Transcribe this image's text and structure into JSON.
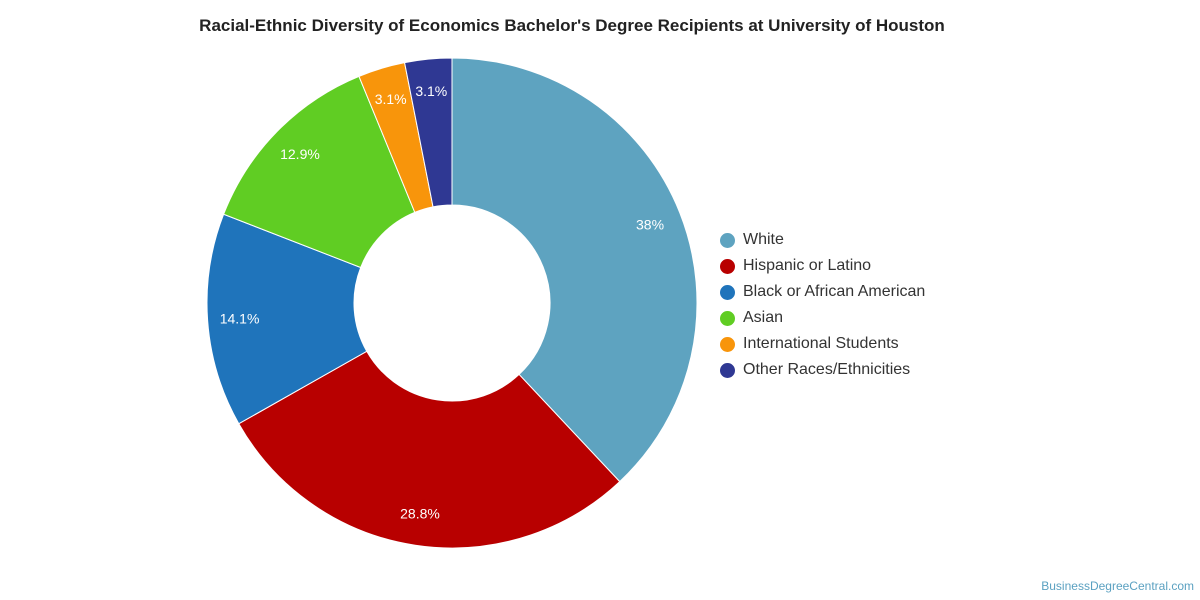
{
  "chart_data": {
    "type": "pie",
    "title": "Racial-Ethnic Diversity of Economics Bachelor's Degree Recipients at University of Houston",
    "donut": true,
    "legend_position": "right",
    "slices": [
      {
        "name": "White",
        "value": 38,
        "label": "38%",
        "color": "#5ea3c0"
      },
      {
        "name": "Hispanic or Latino",
        "value": 28.8,
        "label": "28.8%",
        "color": "#b80000"
      },
      {
        "name": "Black or African American",
        "value": 14.1,
        "label": "14.1%",
        "color": "#1f74bb"
      },
      {
        "name": "Asian",
        "value": 12.9,
        "label": "12.9%",
        "color": "#60cd23"
      },
      {
        "name": "International Students",
        "value": 3.1,
        "label": "3.1%",
        "color": "#f8950b"
      },
      {
        "name": "Other Races/Ethnicities",
        "value": 3.1,
        "label": "3.1%",
        "color": "#2f3893"
      }
    ]
  },
  "source": "BusinessDegreeCentral.com"
}
